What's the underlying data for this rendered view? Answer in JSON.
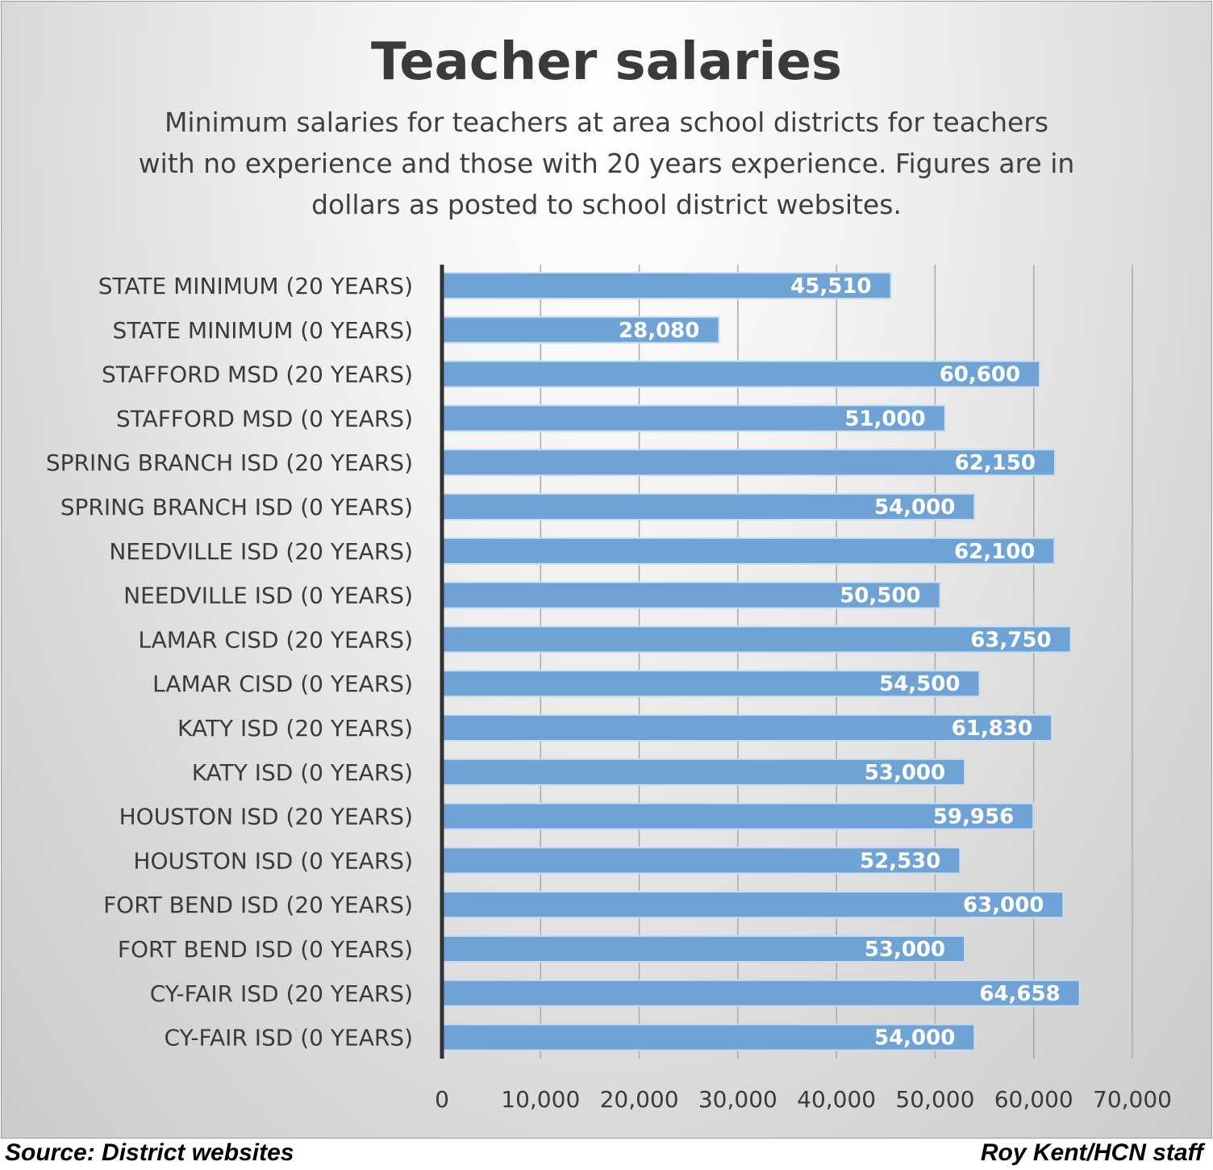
{
  "chart_data": {
    "type": "bar",
    "orientation": "horizontal",
    "title": "Teacher salaries",
    "subtitle": "Minimum salaries for teachers at area school districts for teachers with no experience and those with 20 years experience. Figures are in dollars as posted to school district websites.",
    "categories": [
      "STATE MINIMUM (20 YEARS)",
      "STATE MINIMUM (0 YEARS)",
      "STAFFORD MSD (20 YEARS)",
      "STAFFORD MSD (0 YEARS)",
      "SPRING BRANCH ISD (20 YEARS)",
      "SPRING BRANCH ISD (0 YEARS)",
      "NEEDVILLE ISD (20 YEARS)",
      "NEEDVILLE ISD (0 YEARS)",
      "LAMAR CISD (20 YEARS)",
      "LAMAR CISD (0 YEARS)",
      "KATY ISD (20 YEARS)",
      "KATY ISD (0 YEARS)",
      "HOUSTON ISD (20 YEARS)",
      "HOUSTON ISD (0 YEARS)",
      "FORT BEND ISD (20 YEARS)",
      "FORT BEND ISD (0 YEARS)",
      "CY-FAIR ISD (20 YEARS)",
      "CY-FAIR ISD (0 YEARS)"
    ],
    "values": [
      45510,
      28080,
      60600,
      51000,
      62150,
      54000,
      62100,
      50500,
      63750,
      54500,
      61830,
      53000,
      59956,
      52530,
      63000,
      53000,
      64658,
      54000
    ],
    "value_labels": [
      "45,510",
      "28,080",
      "60,600",
      "51,000",
      "62,150",
      "54,000",
      "62,100",
      "50,500",
      "63,750",
      "54,500",
      "61,830",
      "53,000",
      "59,956",
      "52,530",
      "63,000",
      "53,000",
      "64,658",
      "54,000"
    ],
    "xlim": [
      0,
      70000
    ],
    "xticks": [
      0,
      10000,
      20000,
      30000,
      40000,
      50000,
      60000,
      70000
    ],
    "xtick_labels": [
      "0",
      "10,000",
      "20,000",
      "30,000",
      "40,000",
      "50,000",
      "60,000",
      "70,000"
    ],
    "grid": "vertical",
    "bar_color": "#6fa3d6",
    "bar_edge_color": "#c9ddf0"
  },
  "footer": {
    "source": "Source: District websites",
    "credit": "Roy Kent/HCN staff"
  }
}
